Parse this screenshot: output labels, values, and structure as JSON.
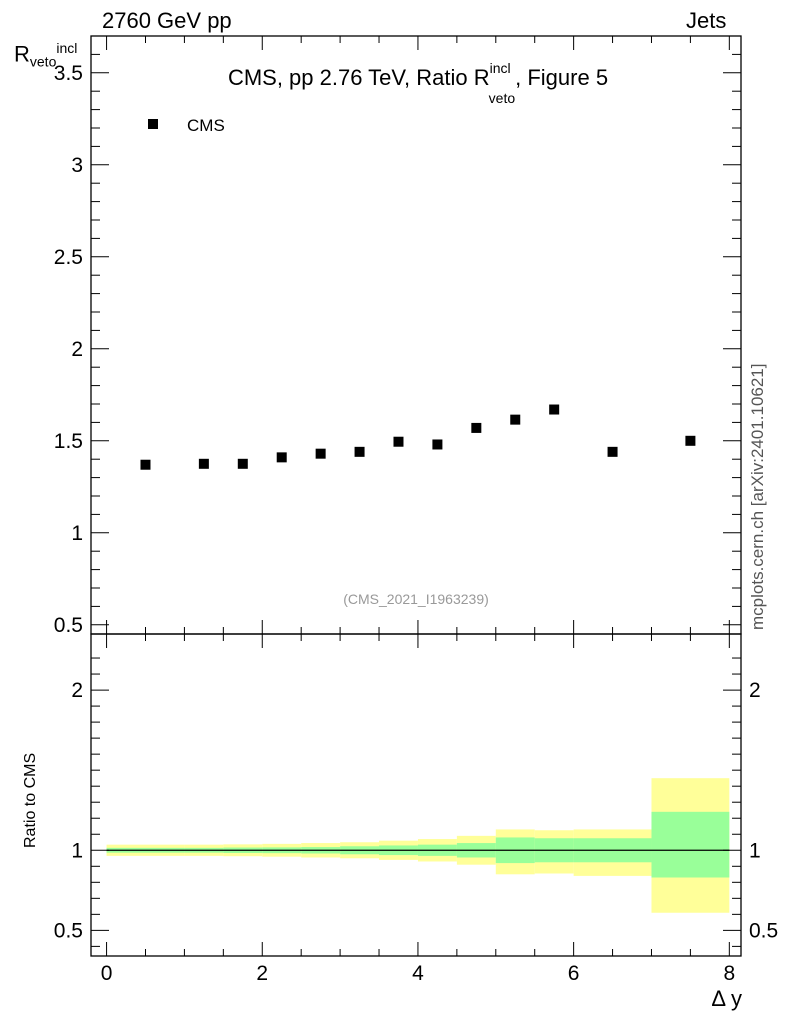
{
  "header": {
    "left": "2760 GeV pp",
    "right": "Jets"
  },
  "side_note": "mcplots.cern.ch [arXiv:2401.10621]",
  "chart_data": [
    {
      "type": "scatter",
      "title": "CMS, pp 2.76 TeV, Ratio R",
      "title_sup": "incl",
      "title_sub": "veto",
      "title_suffix": ", Figure 5",
      "ylabel": "R",
      "ylabel_sup": "incl",
      "ylabel_sub": "veto",
      "watermark": "(CMS_2021_I1963239)",
      "xlim": [
        -0.2,
        8.15
      ],
      "ylim": [
        0.45,
        3.7
      ],
      "yticks": [
        0.5,
        1,
        1.5,
        2,
        2.5,
        3,
        3.5
      ],
      "ytick_labels": [
        "0.5",
        "1",
        "1.5",
        "2",
        "2.5",
        "3",
        "3.5"
      ],
      "legend": {
        "label": "CMS",
        "position": "top-left"
      },
      "series": [
        {
          "name": "CMS",
          "color": "#000000",
          "marker": "square",
          "x": [
            0.5,
            1.25,
            1.75,
            2.25,
            2.75,
            3.25,
            3.75,
            4.25,
            4.75,
            5.25,
            5.75,
            6.5,
            7.5
          ],
          "y": [
            1.37,
            1.375,
            1.375,
            1.41,
            1.43,
            1.44,
            1.495,
            1.48,
            1.57,
            1.615,
            1.67,
            1.44,
            1.5
          ]
        }
      ]
    },
    {
      "type": "area",
      "ylabel": "Ratio to CMS",
      "xlabel": "Δ y",
      "xlim": [
        -0.2,
        8.15
      ],
      "ylim": [
        0.34,
        2.35
      ],
      "xticks": [
        0,
        2,
        4,
        6,
        8
      ],
      "xtick_labels": [
        "0",
        "2",
        "4",
        "6",
        "8"
      ],
      "yticks": [
        0.5,
        1,
        2
      ],
      "ytick_labels": [
        "0.5",
        "1",
        "2"
      ],
      "reference_line": 1,
      "bins": [
        {
          "lo": 0.0,
          "hi": 1.0,
          "inner": [
            0.985,
            1.015
          ],
          "outer": [
            0.965,
            1.035
          ]
        },
        {
          "lo": 1.0,
          "hi": 1.5,
          "inner": [
            0.985,
            1.015
          ],
          "outer": [
            0.965,
            1.035
          ]
        },
        {
          "lo": 1.5,
          "hi": 2.0,
          "inner": [
            0.983,
            1.017
          ],
          "outer": [
            0.963,
            1.037
          ]
        },
        {
          "lo": 2.0,
          "hi": 2.5,
          "inner": [
            0.982,
            1.018
          ],
          "outer": [
            0.96,
            1.04
          ]
        },
        {
          "lo": 2.5,
          "hi": 3.0,
          "inner": [
            0.98,
            1.02
          ],
          "outer": [
            0.955,
            1.045
          ]
        },
        {
          "lo": 3.0,
          "hi": 3.5,
          "inner": [
            0.975,
            1.025
          ],
          "outer": [
            0.95,
            1.05
          ]
        },
        {
          "lo": 3.5,
          "hi": 4.0,
          "inner": [
            0.97,
            1.03
          ],
          "outer": [
            0.94,
            1.06
          ]
        },
        {
          "lo": 4.0,
          "hi": 4.5,
          "inner": [
            0.965,
            1.035
          ],
          "outer": [
            0.93,
            1.07
          ]
        },
        {
          "lo": 4.5,
          "hi": 5.0,
          "inner": [
            0.955,
            1.045
          ],
          "outer": [
            0.91,
            1.09
          ]
        },
        {
          "lo": 5.0,
          "hi": 5.5,
          "inner": [
            0.92,
            1.08
          ],
          "outer": [
            0.85,
            1.13
          ]
        },
        {
          "lo": 5.5,
          "hi": 6.0,
          "inner": [
            0.925,
            1.075
          ],
          "outer": [
            0.855,
            1.125
          ]
        },
        {
          "lo": 6.0,
          "hi": 7.0,
          "inner": [
            0.925,
            1.075
          ],
          "outer": [
            0.84,
            1.13
          ]
        },
        {
          "lo": 7.0,
          "hi": 8.0,
          "inner": [
            0.83,
            1.24
          ],
          "outer": [
            0.61,
            1.45
          ]
        }
      ],
      "colors": {
        "inner": "#99ff99",
        "outer": "#ffff99",
        "line": "#000000"
      }
    }
  ]
}
